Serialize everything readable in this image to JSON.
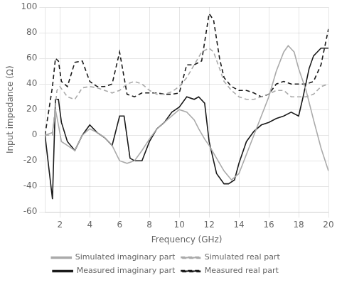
{
  "chart_data": {
    "type": "line",
    "xlabel": "Frequency (GHz)",
    "ylabel": "Input impedance (Ω)",
    "xlim": [
      1,
      20
    ],
    "ylim": [
      -60,
      100
    ],
    "xticks": [
      2,
      4,
      6,
      8,
      10,
      12,
      14,
      16,
      18,
      20
    ],
    "yticks": [
      -60,
      -40,
      -20,
      0,
      20,
      40,
      60,
      80,
      100
    ],
    "grid": true,
    "legend": "bottom",
    "series": [
      {
        "name": "Simulated imaginary part",
        "color": "#aaaaaa",
        "line_style": "solid",
        "x": [
          1.0,
          1.5,
          1.7,
          1.9,
          2.1,
          2.5,
          3.0,
          3.5,
          4.0,
          4.5,
          5.0,
          5.5,
          6.0,
          6.5,
          7.0,
          7.5,
          8.0,
          8.5,
          9.0,
          9.5,
          10.0,
          10.5,
          11.0,
          11.3,
          11.7,
          12.0,
          12.5,
          13.0,
          13.5,
          14.0,
          14.5,
          15.0,
          15.5,
          16.0,
          16.5,
          17.0,
          17.3,
          17.7,
          18.0,
          18.5,
          19.0,
          19.5,
          20.0
        ],
        "values": [
          0,
          2,
          20,
          8,
          -5,
          -8,
          -12,
          0,
          5,
          2,
          -2,
          -8,
          -20,
          -22,
          -20,
          -12,
          -3,
          5,
          10,
          15,
          20,
          18,
          12,
          5,
          -3,
          -8,
          -18,
          -28,
          -35,
          -30,
          -15,
          0,
          15,
          30,
          50,
          65,
          70,
          65,
          52,
          35,
          12,
          -10,
          -28
        ]
      },
      {
        "name": "Simulated real part",
        "color": "#aaaaaa",
        "line_style": "dashed",
        "x": [
          1.0,
          1.5,
          1.8,
          2.0,
          2.5,
          3.0,
          3.5,
          4.0,
          4.5,
          5.0,
          5.5,
          6.0,
          6.5,
          7.0,
          7.5,
          8.0,
          8.5,
          9.0,
          9.5,
          10.0,
          10.5,
          11.0,
          11.5,
          12.0,
          12.3,
          12.7,
          13.0,
          13.5,
          14.0,
          14.5,
          15.0,
          15.5,
          16.0,
          16.5,
          17.0,
          17.5,
          18.0,
          18.5,
          19.0,
          19.5,
          20.0
        ],
        "values": [
          0,
          0,
          35,
          38,
          30,
          28,
          37,
          38,
          37,
          35,
          33,
          35,
          40,
          42,
          40,
          35,
          32,
          32,
          34,
          38,
          45,
          55,
          65,
          68,
          65,
          52,
          42,
          35,
          30,
          28,
          28,
          30,
          32,
          35,
          35,
          30,
          30,
          30,
          32,
          38,
          40
        ]
      },
      {
        "name": "Measured imaginary part",
        "color": "#1a1a1a",
        "line_style": "solid",
        "x": [
          1.0,
          1.5,
          1.7,
          1.9,
          2.1,
          2.5,
          3.0,
          3.5,
          4.0,
          4.5,
          5.0,
          5.5,
          6.0,
          6.3,
          6.7,
          7.0,
          7.5,
          8.0,
          8.5,
          9.0,
          9.5,
          10.0,
          10.5,
          11.0,
          11.3,
          11.7,
          12.0,
          12.5,
          13.0,
          13.3,
          13.7,
          14.0,
          14.5,
          15.0,
          15.5,
          16.0,
          16.5,
          17.0,
          17.5,
          18.0,
          18.3,
          18.7,
          19.0,
          19.5,
          20.0
        ],
        "values": [
          0,
          -50,
          28,
          28,
          10,
          -5,
          -12,
          0,
          8,
          2,
          -2,
          -8,
          15,
          15,
          -18,
          -20,
          -20,
          -5,
          5,
          10,
          18,
          22,
          30,
          28,
          30,
          25,
          -5,
          -30,
          -38,
          -38,
          -35,
          -22,
          -5,
          3,
          8,
          10,
          13,
          15,
          18,
          15,
          30,
          52,
          62,
          68,
          68
        ]
      },
      {
        "name": "Measured real part",
        "color": "#1a1a1a",
        "line_style": "dashed",
        "x": [
          1.0,
          1.5,
          1.7,
          1.9,
          2.1,
          2.5,
          3.0,
          3.5,
          4.0,
          4.5,
          5.0,
          5.5,
          6.0,
          6.5,
          7.0,
          7.5,
          8.0,
          8.5,
          9.0,
          9.5,
          10.0,
          10.5,
          11.0,
          11.5,
          12.0,
          12.3,
          12.7,
          13.0,
          13.5,
          14.0,
          14.5,
          15.0,
          15.5,
          16.0,
          16.5,
          17.0,
          17.5,
          18.0,
          18.5,
          19.0,
          19.5,
          20.0
        ],
        "values": [
          0,
          38,
          60,
          58,
          42,
          38,
          57,
          58,
          42,
          38,
          38,
          40,
          65,
          32,
          30,
          33,
          33,
          33,
          32,
          32,
          33,
          55,
          55,
          58,
          95,
          90,
          60,
          45,
          38,
          35,
          35,
          33,
          30,
          32,
          40,
          42,
          40,
          40,
          40,
          42,
          55,
          83
        ]
      }
    ]
  }
}
